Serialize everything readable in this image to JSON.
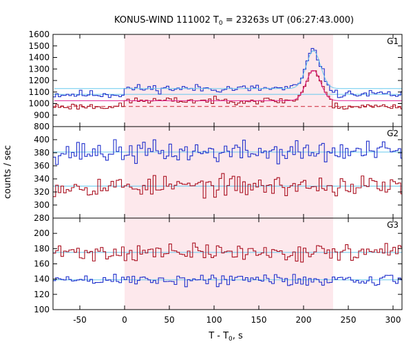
{
  "chart_data": {
    "type": "line",
    "title_main": "KONUS-WIND 111002 T",
    "title_sub": "0",
    "title_tail": " = 23263s UT (06:27:43.000)",
    "xlabel_main": "T - T",
    "xlabel_sub": "0",
    "xlabel_tail": ", s",
    "ylabel": "counts / sec",
    "xlim": [
      -80,
      310
    ],
    "xticks": [
      -50,
      0,
      50,
      100,
      150,
      200,
      250,
      300
    ],
    "bin_width_s": 2.944,
    "shaded_interval": [
      0,
      233
    ],
    "colors": {
      "series_a": "#1f2fcc",
      "series_b": "#aa1020",
      "fit": "#66c8ee",
      "dashed": "#cc2030",
      "pink": "#e02090",
      "shade": "#fde8ec"
    },
    "panels": [
      {
        "name": "G1",
        "ylim": [
          800,
          1600
        ],
        "yticks": [
          800,
          900,
          1000,
          1100,
          1200,
          1300,
          1400,
          1500,
          1600
        ],
        "series": [
          {
            "role": "series_a",
            "base": 1080,
            "noise": 25,
            "peak": 360,
            "rise": 1010,
            "rise_level": 1130,
            "seed": 11
          },
          {
            "role": "series_b",
            "base": 975,
            "noise": 20,
            "peak": 270,
            "rise": 975,
            "rise_level": 1025,
            "seed": 23
          }
        ],
        "fits": [
          {
            "role": "fit",
            "y": 1080
          },
          {
            "role": "dashed",
            "y": 975
          }
        ],
        "peak_center": 211,
        "peak_sigma": 8,
        "peak_level_a": 1460,
        "peak_level_b": 1290
      },
      {
        "name": "G2",
        "ylim": [
          280,
          420
        ],
        "yticks": [
          280,
          300,
          320,
          340,
          360,
          380,
          400
        ],
        "series": [
          {
            "role": "series_a",
            "base": 381,
            "noise": 12,
            "seed": 37
          },
          {
            "role": "series_b",
            "base": 329,
            "noise": 11,
            "seed": 53
          }
        ],
        "fits": [
          {
            "role": "fit",
            "y": 381
          },
          {
            "role": "fit",
            "y": 329
          }
        ]
      },
      {
        "name": "G3",
        "ylim": [
          100,
          220
        ],
        "yticks": [
          100,
          120,
          140,
          160,
          180,
          200
        ],
        "series": [
          {
            "role": "series_b",
            "base": 175,
            "noise": 8,
            "seed": 71
          },
          {
            "role": "series_a",
            "base": 139,
            "noise": 6,
            "seed": 89
          }
        ],
        "fits": [
          {
            "role": "fit",
            "y": 175
          },
          {
            "role": "fit",
            "y": 139
          }
        ]
      }
    ]
  }
}
